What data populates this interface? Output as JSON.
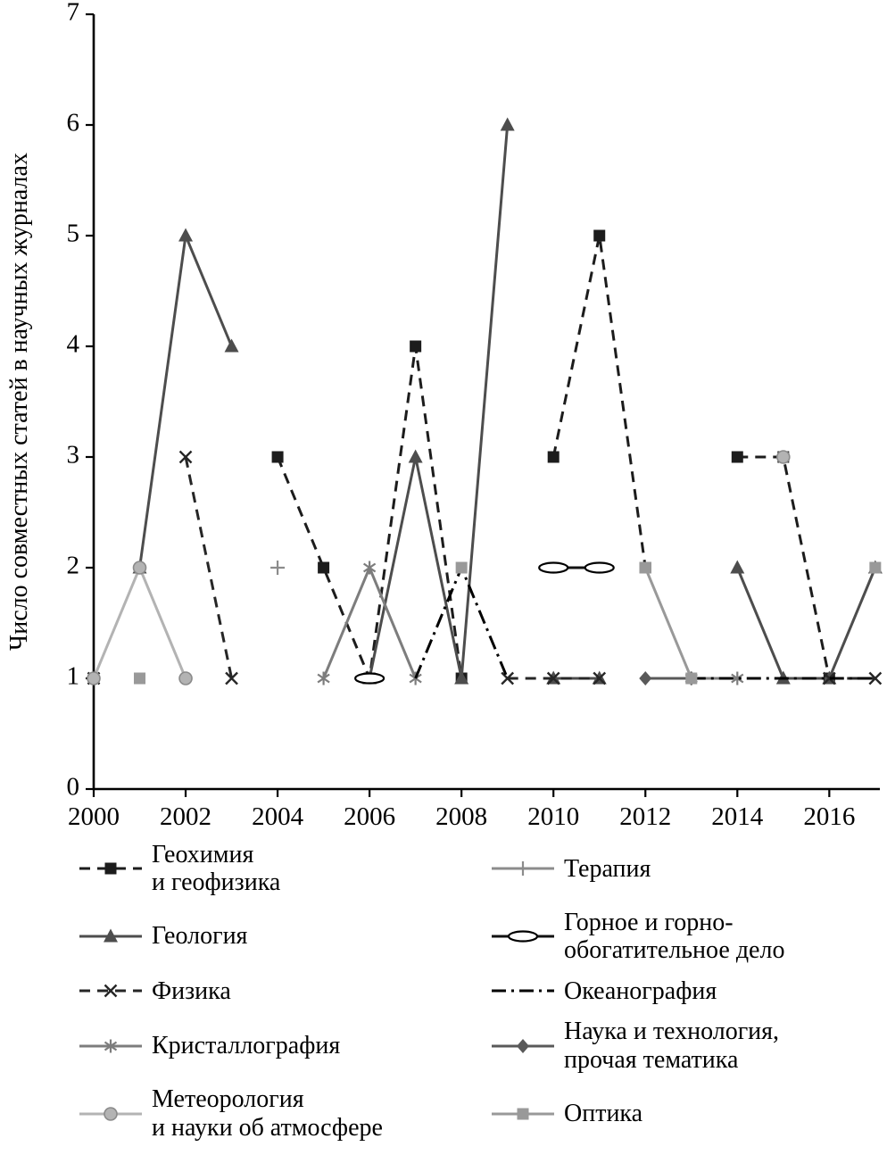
{
  "figure": {
    "background": "#ffffff",
    "axis_color": "#000000"
  },
  "chart_data": {
    "type": "line",
    "title": "",
    "xlabel": "",
    "ylabel": "Число совместных статей в научных журналах",
    "xlim": [
      2000,
      2017.1
    ],
    "ylim": [
      0,
      7
    ],
    "x_ticks": [
      2000,
      2002,
      2004,
      2006,
      2008,
      2010,
      2012,
      2014,
      2016
    ],
    "y_ticks": [
      0,
      1,
      2,
      3,
      4,
      5,
      6,
      7
    ],
    "grid": false,
    "legend_position": "bottom",
    "series": [
      {
        "id": "geochemistry-geophysics",
        "name": "Геохимия\nи геофизика",
        "marker": "square",
        "color": "#1c1c1c",
        "line": "dashed",
        "points": [
          [
            2004,
            3
          ],
          [
            2005,
            2
          ],
          [
            2006,
            1
          ],
          [
            2007,
            4
          ],
          [
            2008,
            1
          ],
          null,
          [
            2010,
            3
          ],
          [
            2011,
            5
          ],
          [
            2012,
            2
          ],
          null,
          [
            2014,
            3
          ],
          [
            2015,
            3
          ],
          [
            2016,
            1
          ]
        ]
      },
      {
        "id": "geology",
        "name": "Геология",
        "marker": "triangle",
        "color": "#4d4d4d",
        "line": "solid",
        "points": [
          [
            2001,
            2
          ],
          [
            2002,
            5
          ],
          [
            2003,
            4
          ],
          null,
          [
            2006,
            1
          ],
          [
            2007,
            3
          ],
          [
            2008,
            1
          ],
          [
            2009,
            6
          ],
          null,
          [
            2010,
            1
          ],
          [
            2011,
            1
          ],
          null,
          [
            2014,
            2
          ],
          [
            2015,
            1
          ],
          [
            2016,
            1
          ],
          [
            2017,
            2
          ]
        ]
      },
      {
        "id": "physics",
        "name": "Физика",
        "marker": "x",
        "color": "#262626",
        "line": "dashed",
        "points": [
          [
            2000,
            1
          ],
          null,
          [
            2002,
            3
          ],
          [
            2003,
            1
          ],
          null,
          [
            2009,
            1
          ],
          [
            2010,
            1
          ],
          [
            2011,
            1
          ],
          null,
          [
            2016,
            1
          ],
          [
            2017,
            1
          ]
        ]
      },
      {
        "id": "crystallography",
        "name": "Кристаллография",
        "marker": "asterisk",
        "color": "#7d7d7d",
        "line": "solid",
        "points": [
          [
            2005,
            1
          ],
          [
            2006,
            2
          ],
          [
            2007,
            1
          ],
          null,
          [
            2013,
            1
          ],
          [
            2014,
            1
          ]
        ]
      },
      {
        "id": "meteorology-atmospheric",
        "name": "Метеорология\nи науки об атмосфере",
        "marker": "circle",
        "color": "#b3b3b3",
        "line": "solid",
        "points": [
          [
            2000,
            1
          ],
          [
            2001,
            2
          ],
          [
            2002,
            1
          ],
          null,
          [
            2015,
            3
          ]
        ]
      },
      {
        "id": "therapy",
        "name": "Терапия",
        "marker": "plus",
        "color": "#8c8c8c",
        "line": "solid",
        "points": [
          [
            2004,
            2
          ]
        ]
      },
      {
        "id": "mining",
        "name": "Горное и горно-\nобогатительное дело",
        "marker": "oval",
        "color": "#111111",
        "line": "solid",
        "points": [
          [
            2006,
            1
          ],
          null,
          [
            2010,
            2
          ],
          [
            2011,
            2
          ]
        ]
      },
      {
        "id": "oceanography",
        "name": "Океанография",
        "marker": "none",
        "color": "#000000",
        "line": "dashdot",
        "points": [
          [
            2007,
            1
          ],
          [
            2008,
            2
          ],
          [
            2009,
            1
          ],
          null,
          [
            2013,
            1
          ],
          [
            2014,
            1
          ],
          [
            2015,
            1
          ],
          [
            2016,
            1
          ],
          [
            2017,
            1
          ]
        ]
      },
      {
        "id": "science-technology-other",
        "name": "Наука и технология,\nпрочая тематика",
        "marker": "diamond",
        "color": "#595959",
        "line": "solid",
        "points": [
          [
            2012,
            1
          ],
          [
            2013,
            1
          ]
        ]
      },
      {
        "id": "optics",
        "name": "Оптика",
        "marker": "square",
        "color": "#999999",
        "line": "solid",
        "points": [
          [
            2001,
            1
          ],
          null,
          [
            2008,
            2
          ],
          null,
          [
            2012,
            2
          ],
          [
            2013,
            1
          ],
          null,
          [
            2017,
            2
          ]
        ]
      }
    ]
  }
}
